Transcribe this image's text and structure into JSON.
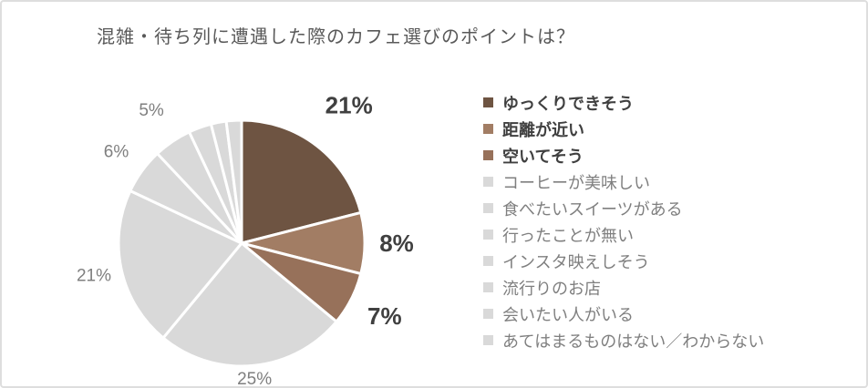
{
  "title": "混雑・待ち列に遭遇した際のカフェ選びのポイントは？",
  "chart_data": {
    "type": "pie",
    "title": "混雑・待ち列に遭遇した際のカフェ選びのポイントは？",
    "unit": "%",
    "start_angle": "top",
    "direction": "clockwise",
    "legend_position": "right",
    "categories": [
      "ゆっくりできそう",
      "距離が近い",
      "空いてそう",
      "コーヒーが美味しい",
      "食べたいスイーツがある",
      "行ったことが無い",
      "インスタ映えしそう",
      "流行りのお店",
      "会いたい人がいる",
      "あてはまるものはない／わからない"
    ],
    "values": [
      21,
      8,
      7,
      25,
      21,
      6,
      5,
      3,
      2,
      2
    ],
    "display_labels": [
      "21%",
      "8%",
      "7%",
      "25%",
      "21%",
      "6%",
      "5%",
      "",
      "",
      ""
    ],
    "emphasized": [
      true,
      true,
      true,
      false,
      false,
      false,
      false,
      false,
      false,
      false
    ],
    "colors": [
      "#6E5442",
      "#A27D64",
      "#97715A",
      "#D9D9D9",
      "#D9D9D9",
      "#D9D9D9",
      "#D9D9D9",
      "#D9D9D9",
      "#D9D9D9",
      "#D9D9D9"
    ],
    "label_color_emphasized": "#404040",
    "label_color_regular": "#7F7F7F",
    "separator_color": "#FFFFFF",
    "title_color": "#595959"
  }
}
